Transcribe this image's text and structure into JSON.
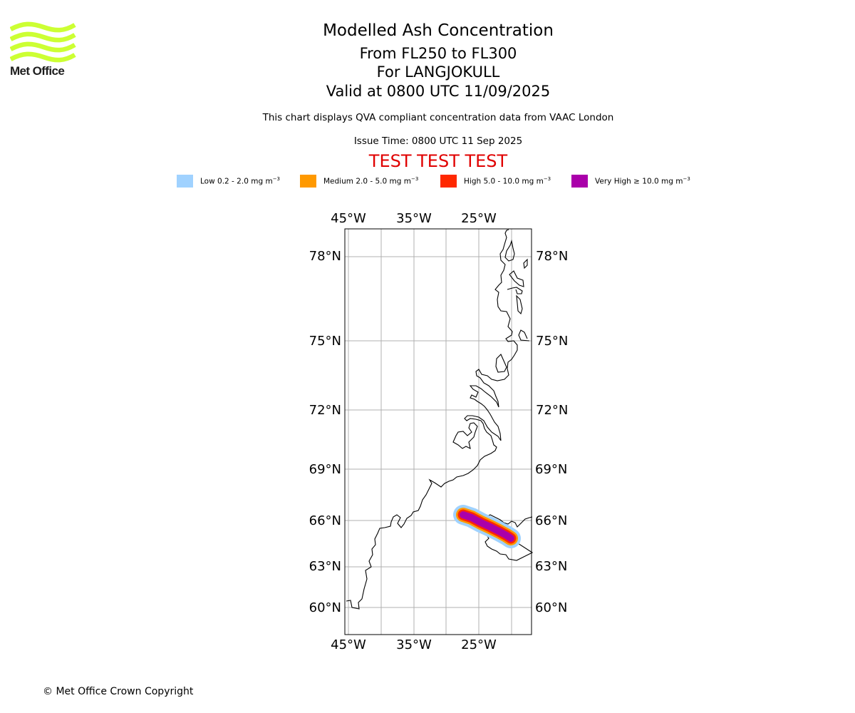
{
  "logo": {
    "text": "Met Office",
    "color": "#ccff33"
  },
  "header": {
    "title": "Modelled Ash Concentration",
    "levels": "From FL250 to FL300",
    "volcano": "For LANGJOKULL",
    "valid": "Valid at 0800 UTC 11/09/2025",
    "description": "This chart displays QVA compliant concentration data from VAAC London",
    "issue_time": "Issue Time: 0800 UTC 11 Sep 2025",
    "test_banner": "TEST TEST TEST"
  },
  "legend": [
    {
      "label": "Low 0.2 - 2.0 mg m",
      "unit_exp": "−3",
      "color": "#a0d2ff",
      "icon": "low-swatch"
    },
    {
      "label": "Medium 2.0 - 5.0 mg m",
      "unit_exp": "−3",
      "color": "#ff9900",
      "icon": "medium-swatch"
    },
    {
      "label": "High 5.0 - 10.0 mg m",
      "unit_exp": "−3",
      "color": "#ff2800",
      "icon": "high-swatch"
    },
    {
      "label": "Very High  ≥  10.0 mg m",
      "unit_exp": "−3",
      "color": "#aa00aa",
      "icon": "very-high-swatch"
    }
  ],
  "map": {
    "longitude_ticks": [
      "45°W",
      "35°W",
      "25°W"
    ],
    "latitude_ticks": [
      "78°N",
      "75°N",
      "72°N",
      "69°N",
      "66°N",
      "63°N",
      "60°N"
    ],
    "gridline_color": "#b0b0b0"
  },
  "footer": {
    "copyright": "© Met Office Crown Copyright"
  }
}
